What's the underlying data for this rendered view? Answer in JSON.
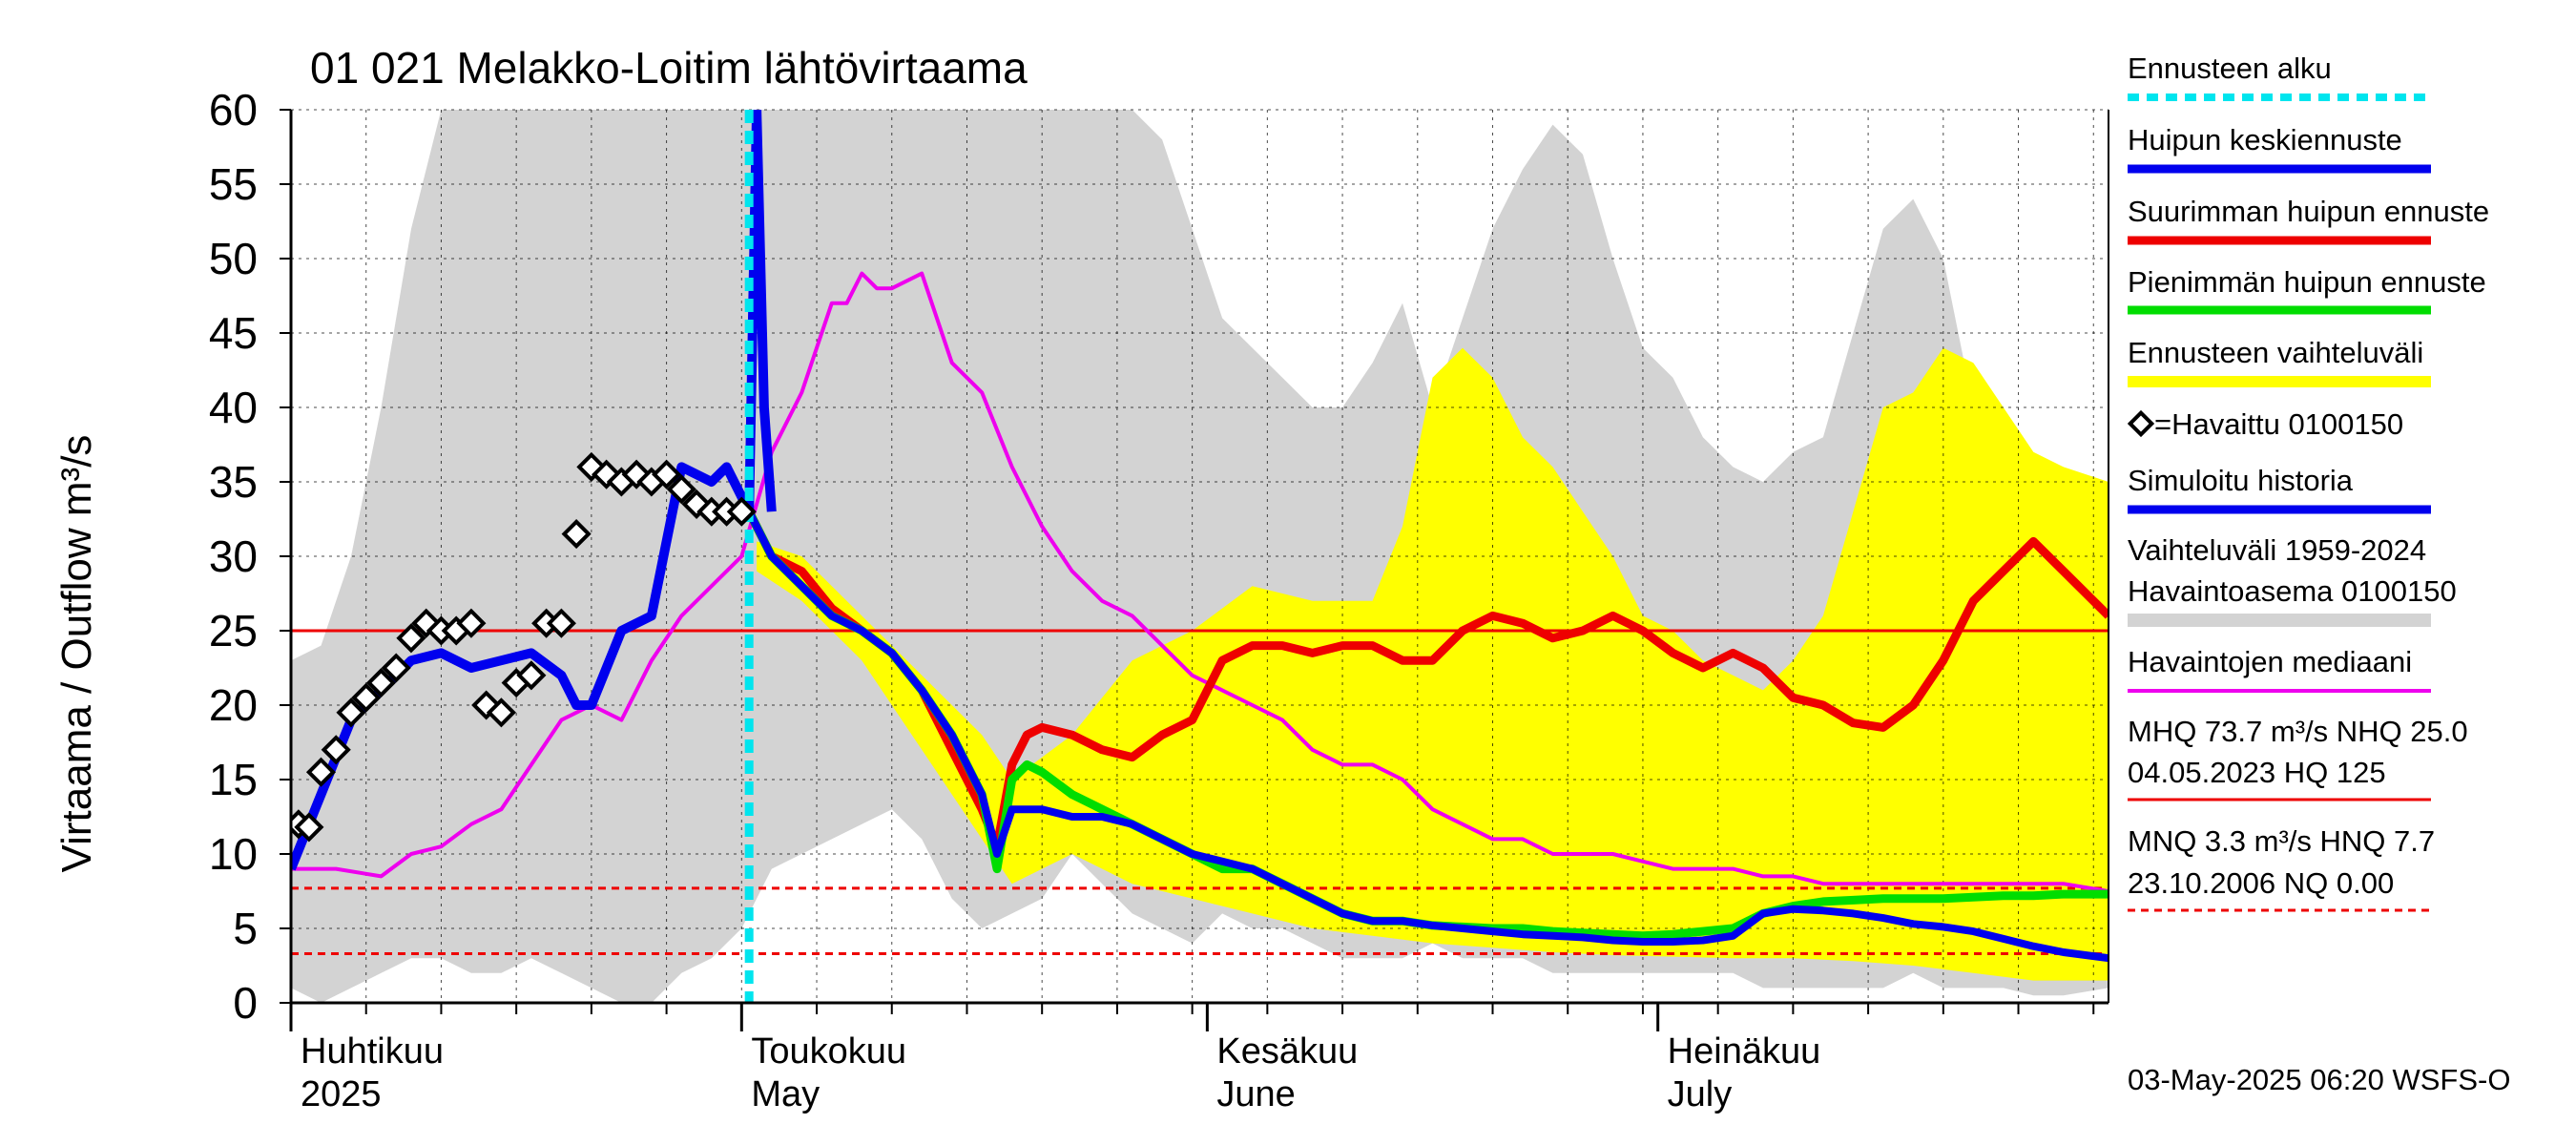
{
  "colors": {
    "grey_band": "#d3d3d3",
    "yellow_band": "#ffff00",
    "red": "#ee0000",
    "blue": "#0000ee",
    "green": "#00dd00",
    "magenta": "#ee00ee",
    "cyan": "#00e5ee",
    "observed": "#000000"
  },
  "legend": {
    "forecast_start": "Ennusteen alku",
    "peak_mean": "Huipun keskiennuste",
    "peak_max": "Suurimman huipun ennuste",
    "peak_min": "Pienimmän huipun ennuste",
    "forecast_range": "Ennusteen vaihteluväli",
    "observed": "=Havaittu 0100150",
    "simulated": "Simuloitu historia",
    "range_line1": "Vaihteluväli 1959-2024",
    "range_line2": " Havaintoasema 0100150",
    "median": "Havaintojen mediaani",
    "mhq_line1": "MHQ 73.7 m³/s NHQ 25.0",
    "mhq_line2": "04.05.2023 HQ  125",
    "mnq_line1": "MNQ  3.3 m³/s HNQ  7.7",
    "mnq_line2": "23.10.2006 NQ 0.00"
  },
  "footer": {
    "timestamp": "03-May-2025 06:20 WSFS-O"
  },
  "chart_data": {
    "type": "line",
    "title": "01 021 Melakko-Loitim lähtövirtaama",
    "ylabel": "Virtaama / Outflow    m³/s",
    "ylim": [
      0,
      60
    ],
    "yticks": [
      0,
      5,
      10,
      15,
      20,
      25,
      30,
      35,
      40,
      45,
      50,
      55,
      60
    ],
    "x_unit": "day (0 = 1 April 2025)",
    "xlim": [
      0,
      121
    ],
    "months": [
      {
        "day": 0,
        "fi": "Huhtikuu",
        "en": "2025"
      },
      {
        "day": 30,
        "fi": "Toukokuu",
        "en": "May"
      },
      {
        "day": 61,
        "fi": "Kesäkuu",
        "en": "June"
      },
      {
        "day": 91,
        "fi": "Heinäkuu",
        "en": "July"
      }
    ],
    "forecast_start_day": 30.5,
    "reference_lines": [
      {
        "name": "NHQ",
        "value": 25.0,
        "style": "solid"
      },
      {
        "name": "HNQ",
        "value": 7.7,
        "style": "dashed"
      },
      {
        "name": "MNQ",
        "value": 3.3,
        "style": "dashed"
      },
      {
        "name": "NQ",
        "value": 0.0,
        "style": "dashed"
      }
    ],
    "series": [
      {
        "name": "Vaihteluväli 1959-2024 (max)",
        "kind": "band_upper",
        "x": [
          0,
          2,
          4,
          6,
          8,
          10,
          12,
          14,
          16,
          18,
          20,
          22,
          24,
          26,
          28,
          30,
          32,
          34,
          36,
          38,
          40,
          42,
          44,
          46,
          48,
          50,
          52,
          54,
          56,
          58,
          60,
          62,
          64,
          66,
          68,
          70,
          72,
          74,
          76,
          78,
          80,
          82,
          84,
          86,
          88,
          90,
          92,
          94,
          96,
          98,
          100,
          102,
          104,
          106,
          108,
          110,
          112,
          114,
          116,
          118,
          121
        ],
        "y": [
          23,
          24,
          30,
          40,
          52,
          60,
          60,
          60,
          60,
          60,
          60,
          60,
          60,
          60,
          60,
          60,
          60,
          60,
          60,
          60,
          60,
          60,
          60,
          60,
          60,
          60,
          60,
          60,
          60,
          58,
          52,
          46,
          44,
          42,
          40,
          40,
          43,
          47,
          40,
          46,
          52,
          56,
          59,
          57,
          50,
          44,
          42,
          38,
          36,
          35,
          37,
          38,
          45,
          52,
          54,
          50,
          40,
          36,
          35,
          34,
          30
        ]
      },
      {
        "name": "Vaihteluväli 1959-2024 (min)",
        "kind": "band_lower",
        "x": [
          0,
          2,
          4,
          6,
          8,
          10,
          12,
          14,
          16,
          18,
          20,
          22,
          24,
          26,
          28,
          30,
          32,
          34,
          36,
          38,
          40,
          42,
          44,
          46,
          48,
          50,
          52,
          54,
          56,
          58,
          60,
          62,
          64,
          66,
          68,
          70,
          72,
          74,
          76,
          78,
          80,
          82,
          84,
          86,
          88,
          90,
          92,
          94,
          96,
          98,
          100,
          102,
          104,
          106,
          108,
          110,
          112,
          114,
          116,
          118,
          121
        ],
        "y": [
          1,
          0,
          1,
          2,
          3,
          3,
          2,
          2,
          3,
          2,
          1,
          0,
          0,
          2,
          3,
          5,
          9,
          10,
          11,
          12,
          13,
          11,
          7,
          5,
          6,
          7,
          10,
          8,
          6,
          5,
          4,
          6,
          5,
          5,
          4,
          3,
          3,
          3,
          4,
          3,
          3,
          3,
          2,
          2,
          2,
          2,
          2,
          2,
          2,
          1,
          1,
          1,
          1,
          1,
          2,
          1,
          1,
          1,
          0.5,
          0.5,
          1
        ]
      },
      {
        "name": "Ennusteen vaihteluväli (max)",
        "kind": "forecast_upper",
        "x": [
          31,
          34,
          38,
          42,
          46,
          48,
          52,
          56,
          60,
          64,
          68,
          72,
          74,
          76,
          78,
          80,
          82,
          84,
          86,
          88,
          90,
          92,
          94,
          96,
          98,
          100,
          102,
          104,
          106,
          108,
          110,
          112,
          114,
          116,
          118,
          121
        ],
        "y": [
          31,
          30,
          26,
          22,
          18,
          15,
          18,
          23,
          25,
          28,
          27,
          27,
          32,
          42,
          44,
          42,
          38,
          36,
          33,
          30,
          26,
          25,
          23,
          22,
          21,
          23,
          26,
          33,
          40,
          41,
          44,
          43,
          40,
          37,
          36,
          35
        ]
      },
      {
        "name": "Ennusteen vaihteluväli (min)",
        "kind": "forecast_lower",
        "x": [
          31,
          34,
          38,
          42,
          46,
          48,
          52,
          56,
          60,
          64,
          68,
          72,
          76,
          80,
          84,
          88,
          92,
          96,
          100,
          104,
          108,
          112,
          116,
          121
        ],
        "y": [
          29,
          27,
          23,
          17,
          11,
          8,
          10,
          8,
          7,
          6,
          5,
          4.5,
          4,
          3.7,
          3.4,
          3.2,
          3.1,
          3,
          3,
          2.8,
          2.5,
          2,
          1.5,
          1.5
        ]
      },
      {
        "name": "Havaintojen mediaani",
        "kind": "line",
        "x": [
          0,
          3,
          6,
          8,
          10,
          12,
          14,
          16,
          18,
          20,
          22,
          24,
          26,
          28,
          30,
          32,
          34,
          35,
          36,
          37,
          38,
          39,
          40,
          42,
          44,
          46,
          48,
          50,
          52,
          54,
          56,
          58,
          60,
          62,
          64,
          66,
          68,
          70,
          72,
          74,
          76,
          78,
          80,
          82,
          84,
          86,
          88,
          90,
          92,
          94,
          96,
          98,
          100,
          102,
          104,
          106,
          108,
          110,
          112,
          114,
          116,
          118,
          121
        ],
        "y": [
          9,
          9,
          8.5,
          10,
          10.5,
          12,
          13,
          16,
          19,
          20,
          19,
          23,
          26,
          28,
          30,
          37,
          41,
          44,
          47,
          47,
          49,
          48,
          48,
          49,
          43,
          41,
          36,
          32,
          29,
          27,
          26,
          24,
          22,
          21,
          20,
          19,
          17,
          16,
          16,
          15,
          13,
          12,
          11,
          11,
          10,
          10,
          10,
          9.5,
          9,
          9,
          9,
          8.5,
          8.5,
          8,
          8,
          8,
          8,
          8,
          8,
          8,
          8,
          8,
          7.5
        ]
      },
      {
        "name": "Huipun keskiennuste",
        "kind": "line",
        "x": [
          30.5,
          32,
          34,
          36,
          38,
          40,
          42,
          44,
          46,
          47,
          48,
          50,
          52,
          54,
          56,
          58,
          60,
          62,
          64,
          66,
          68,
          70,
          72,
          74,
          76,
          78,
          80,
          82,
          84,
          86,
          88,
          90,
          92,
          94,
          96,
          98,
          100,
          102,
          104,
          106,
          108,
          110,
          112,
          114,
          116,
          118,
          121
        ],
        "y": [
          33,
          30,
          28,
          26,
          25,
          23.5,
          21,
          18,
          14,
          10,
          13,
          13,
          12.5,
          12.5,
          12,
          11,
          10,
          9.5,
          9,
          8,
          7,
          6,
          5.5,
          5.5,
          5.2,
          5,
          4.8,
          4.6,
          4.5,
          4.4,
          4.2,
          4.1,
          4.1,
          4.2,
          4.5,
          6,
          6.3,
          6.2,
          6,
          5.7,
          5.3,
          5.1,
          4.8,
          4.3,
          3.8,
          3.4,
          3.0
        ]
      },
      {
        "name": "Suurimman huipun ennuste",
        "kind": "line",
        "x": [
          30.5,
          32,
          34,
          36,
          38,
          40,
          42,
          44,
          46,
          47,
          48,
          49,
          50,
          52,
          54,
          56,
          58,
          60,
          62,
          64,
          66,
          68,
          70,
          72,
          74,
          76,
          78,
          80,
          82,
          84,
          86,
          88,
          90,
          92,
          94,
          96,
          98,
          100,
          102,
          104,
          106,
          108,
          110,
          112,
          114,
          116,
          118,
          121
        ],
        "y": [
          33,
          30,
          29,
          26.5,
          25,
          23.5,
          21,
          17,
          13,
          10.5,
          16,
          18,
          18.5,
          18,
          17,
          16.5,
          18,
          19,
          23,
          24,
          24,
          23.5,
          24,
          24,
          23,
          23,
          25,
          26,
          25.5,
          24.5,
          25,
          26,
          25,
          23.5,
          22.5,
          23.5,
          22.5,
          20.5,
          20,
          18.8,
          18.5,
          20,
          23,
          27,
          29,
          31,
          29,
          26
        ]
      },
      {
        "name": "Pienimmän huipun ennuste",
        "kind": "line",
        "x": [
          30.5,
          32,
          34,
          36,
          38,
          40,
          42,
          44,
          46,
          47,
          48,
          49,
          50,
          52,
          54,
          56,
          58,
          60,
          62,
          64,
          66,
          68,
          70,
          72,
          74,
          76,
          78,
          80,
          82,
          84,
          86,
          88,
          90,
          92,
          94,
          96,
          98,
          100,
          102,
          104,
          106,
          108,
          110,
          112,
          114,
          116,
          118,
          121
        ],
        "y": [
          33,
          30,
          28,
          26,
          25,
          23.5,
          21,
          18,
          14,
          9,
          15,
          16,
          15.5,
          14,
          13,
          12,
          11,
          10,
          9,
          9,
          8,
          7,
          6,
          5.5,
          5.5,
          5.2,
          5.1,
          5,
          5,
          4.8,
          4.7,
          4.6,
          4.5,
          4.6,
          4.8,
          5,
          6,
          6.5,
          6.8,
          6.9,
          7,
          7,
          7,
          7.1,
          7.2,
          7.2,
          7.3,
          7.3
        ]
      },
      {
        "name": "Simuloitu historia",
        "kind": "line",
        "x": [
          0,
          2,
          4,
          6,
          8,
          10,
          12,
          14,
          16,
          18,
          19,
          20,
          22,
          24,
          26,
          28,
          29,
          30,
          30.5,
          31,
          31.5,
          32
        ],
        "y": [
          9,
          14,
          19,
          21,
          23,
          23.5,
          22.5,
          23,
          23.5,
          22,
          20,
          20,
          25,
          26,
          36,
          35,
          36,
          34,
          33,
          60,
          40,
          33
        ]
      },
      {
        "name": "Havaittu 0100150",
        "kind": "scatter",
        "x": [
          0.5,
          1.2,
          2,
          3,
          4,
          5,
          6,
          7,
          8,
          9,
          10,
          11,
          12,
          13,
          14,
          15,
          16,
          17,
          18,
          19,
          20,
          21,
          22,
          23,
          24,
          25,
          26,
          27,
          28,
          29,
          30
        ],
        "y": [
          12,
          11.8,
          15.5,
          17,
          19.5,
          20.5,
          21.5,
          22.5,
          24.5,
          25.5,
          25,
          25,
          25.5,
          20,
          19.5,
          21.5,
          22,
          25.5,
          25.5,
          31.5,
          36,
          35.5,
          35,
          35.5,
          35,
          35.5,
          34.5,
          33.5,
          33,
          33,
          33
        ]
      }
    ]
  }
}
